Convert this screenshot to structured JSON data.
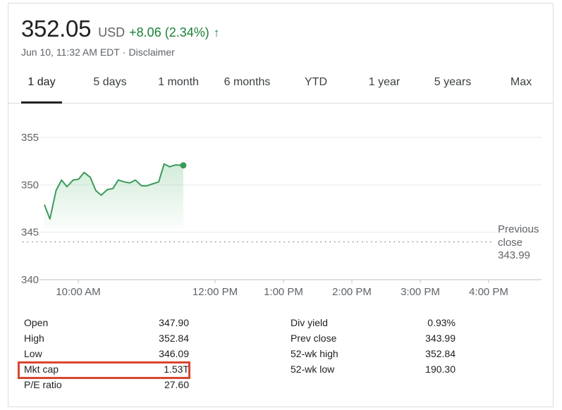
{
  "quote": {
    "price": "352.05",
    "currency": "USD",
    "change": "+8.06 (2.34%)",
    "arrow_icon": "arrow-up-icon",
    "timestamp": "Jun 10, 11:32 AM EDT",
    "separator": "·",
    "disclaimer": "Disclaimer"
  },
  "tabs": [
    "1 day",
    "5 days",
    "1 month",
    "6 months",
    "YTD",
    "1 year",
    "5 years",
    "Max"
  ],
  "active_tab": "1 day",
  "colors": {
    "positive": "#188038",
    "line": "#3b9a5b",
    "highlight_border": "#d9462f",
    "grid": "#e8eaed"
  },
  "chart_data": {
    "type": "line",
    "y_ticks": [
      "355",
      "350",
      "345",
      "340"
    ],
    "ylim": [
      340,
      355
    ],
    "x_ticks": [
      "10:00 AM",
      "12:00 PM",
      "1:00 PM",
      "2:00 PM",
      "3:00 PM",
      "4:00 PM"
    ],
    "x_tick_hours": [
      10,
      12,
      13,
      14,
      15,
      16
    ],
    "xlim_hours": [
      9.5,
      16.5
    ],
    "series": [
      {
        "x_hours": [
          9.5,
          9.58,
          9.67,
          9.75,
          9.83,
          9.92,
          10.0,
          10.08,
          10.17,
          10.25,
          10.33,
          10.42,
          10.5,
          10.58,
          10.67,
          10.75,
          10.83,
          10.92,
          11.0,
          11.08,
          11.17,
          11.25,
          11.33,
          11.42,
          11.53
        ],
        "y": [
          347.9,
          346.4,
          349.4,
          350.5,
          349.8,
          350.5,
          350.6,
          351.3,
          350.8,
          349.4,
          348.9,
          349.5,
          349.6,
          350.5,
          350.3,
          350.2,
          350.5,
          349.9,
          349.9,
          350.1,
          350.3,
          352.2,
          351.9,
          352.1,
          352.05
        ]
      }
    ],
    "previous_close": {
      "label_line1": "Previous",
      "label_line2": "close",
      "value": "343.99",
      "y": 343.99
    },
    "grid": true
  },
  "stats_left": [
    {
      "label": "Open",
      "value": "347.90"
    },
    {
      "label": "High",
      "value": "352.84"
    },
    {
      "label": "Low",
      "value": "346.09"
    },
    {
      "label": "Mkt cap",
      "value": "1.53T"
    },
    {
      "label": "P/E ratio",
      "value": "27.60"
    }
  ],
  "stats_right": [
    {
      "label": "Div yield",
      "value": "0.93%"
    },
    {
      "label": "Prev close",
      "value": "343.99"
    },
    {
      "label": "52-wk high",
      "value": "352.84"
    },
    {
      "label": "52-wk low",
      "value": "190.30"
    }
  ]
}
